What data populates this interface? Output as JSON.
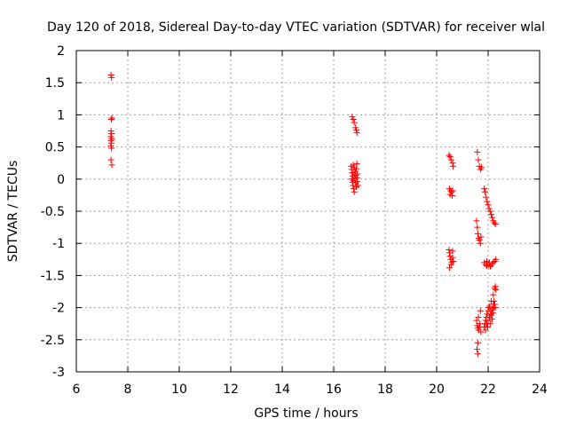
{
  "chart_data": {
    "type": "scatter",
    "title": "Day 120 of 2018, Sidereal Day-to-day VTEC variation (SDTVAR) for receiver wlal",
    "xlabel": "GPS time / hours",
    "ylabel": "SDTVAR / TECUs",
    "xlim": [
      6,
      24
    ],
    "ylim": [
      -3,
      2
    ],
    "xticks": [
      6,
      8,
      10,
      12,
      14,
      16,
      18,
      20,
      22,
      24
    ],
    "xtick_labels": [
      "6",
      "8",
      "10",
      "12",
      "14",
      "16",
      "18",
      "20",
      "22",
      "24"
    ],
    "yticks": [
      -3,
      -2.5,
      -2,
      -1.5,
      -1,
      -0.5,
      0,
      0.5,
      1,
      1.5,
      2
    ],
    "ytick_labels": [
      "-3",
      "-2.5",
      "-2",
      "-1.5",
      "-1",
      "-0.5",
      "0",
      "0.5",
      "1",
      "1.5",
      "2"
    ],
    "grid": true,
    "marker": "+",
    "color": "#ff0000",
    "series": [
      {
        "name": "SDTVAR",
        "points": [
          [
            7.35,
            1.62
          ],
          [
            7.37,
            1.58
          ],
          [
            7.38,
            0.95
          ],
          [
            7.36,
            0.93
          ],
          [
            7.35,
            0.75
          ],
          [
            7.37,
            0.71
          ],
          [
            7.34,
            0.66
          ],
          [
            7.38,
            0.63
          ],
          [
            7.35,
            0.6
          ],
          [
            7.36,
            0.56
          ],
          [
            7.34,
            0.52
          ],
          [
            7.37,
            0.48
          ],
          [
            7.35,
            0.3
          ],
          [
            7.38,
            0.22
          ],
          [
            16.72,
            0.97
          ],
          [
            16.76,
            0.93
          ],
          [
            16.8,
            0.88
          ],
          [
            16.85,
            0.8
          ],
          [
            16.88,
            0.76
          ],
          [
            16.9,
            0.72
          ],
          [
            16.68,
            0.2
          ],
          [
            16.7,
            0.15
          ],
          [
            16.72,
            0.1
          ],
          [
            16.74,
            0.05
          ],
          [
            16.7,
            0.0
          ],
          [
            16.73,
            -0.05
          ],
          [
            16.75,
            -0.1
          ],
          [
            16.78,
            -0.15
          ],
          [
            16.8,
            -0.2
          ],
          [
            16.76,
            0.22
          ],
          [
            16.8,
            0.18
          ],
          [
            16.84,
            0.12
          ],
          [
            16.86,
            0.06
          ],
          [
            16.82,
            0.0
          ],
          [
            16.85,
            -0.06
          ],
          [
            16.88,
            -0.12
          ],
          [
            16.9,
            0.24
          ],
          [
            16.88,
            0.16
          ],
          [
            16.92,
            0.08
          ],
          [
            16.9,
            0.02
          ],
          [
            16.92,
            -0.04
          ],
          [
            16.94,
            -0.1
          ],
          [
            16.8,
            0.08
          ],
          [
            16.76,
            -0.02
          ],
          [
            20.48,
            0.37
          ],
          [
            20.52,
            0.35
          ],
          [
            20.56,
            0.3
          ],
          [
            20.62,
            0.25
          ],
          [
            20.64,
            0.2
          ],
          [
            20.5,
            -0.15
          ],
          [
            20.54,
            -0.18
          ],
          [
            20.58,
            -0.2
          ],
          [
            20.62,
            -0.18
          ],
          [
            20.52,
            -0.24
          ],
          [
            20.6,
            -0.26
          ],
          [
            20.48,
            -1.1
          ],
          [
            20.5,
            -1.15
          ],
          [
            20.52,
            -1.2
          ],
          [
            20.55,
            -1.25
          ],
          [
            20.58,
            -1.3
          ],
          [
            20.62,
            -1.12
          ],
          [
            20.64,
            -1.28
          ],
          [
            20.5,
            -1.38
          ],
          [
            20.56,
            -1.33
          ],
          [
            20.62,
            -1.22
          ],
          [
            21.58,
            0.42
          ],
          [
            21.62,
            0.3
          ],
          [
            21.66,
            0.2
          ],
          [
            21.7,
            0.15
          ],
          [
            21.74,
            0.18
          ],
          [
            21.55,
            -0.65
          ],
          [
            21.58,
            -0.75
          ],
          [
            21.6,
            -0.85
          ],
          [
            21.63,
            -0.92
          ],
          [
            21.66,
            -0.95
          ],
          [
            21.7,
            -1.0
          ],
          [
            21.72,
            -0.9
          ],
          [
            21.55,
            -2.2
          ],
          [
            21.58,
            -2.28
          ],
          [
            21.6,
            -2.32
          ],
          [
            21.63,
            -2.35
          ],
          [
            21.66,
            -2.3
          ],
          [
            21.68,
            -2.25
          ],
          [
            21.7,
            -2.05
          ],
          [
            21.62,
            -2.15
          ],
          [
            21.72,
            -2.38
          ],
          [
            21.6,
            -2.55
          ],
          [
            21.57,
            -2.65
          ],
          [
            21.6,
            -2.72
          ],
          [
            21.85,
            -0.15
          ],
          [
            21.88,
            -0.2
          ],
          [
            21.92,
            -0.28
          ],
          [
            21.96,
            -0.35
          ],
          [
            22.0,
            -0.4
          ],
          [
            22.04,
            -0.46
          ],
          [
            22.08,
            -0.5
          ],
          [
            22.12,
            -0.55
          ],
          [
            22.16,
            -0.6
          ],
          [
            22.2,
            -0.65
          ],
          [
            22.24,
            -0.68
          ],
          [
            22.28,
            -0.7
          ],
          [
            21.85,
            -1.3
          ],
          [
            21.9,
            -1.33
          ],
          [
            21.95,
            -1.35
          ],
          [
            22.0,
            -1.33
          ],
          [
            22.05,
            -1.3
          ],
          [
            22.1,
            -1.35
          ],
          [
            22.15,
            -1.32
          ],
          [
            22.2,
            -1.3
          ],
          [
            22.25,
            -1.28
          ],
          [
            22.3,
            -1.25
          ],
          [
            21.95,
            -1.28
          ],
          [
            22.08,
            -1.36
          ],
          [
            21.85,
            -2.3
          ],
          [
            21.88,
            -2.25
          ],
          [
            21.9,
            -2.2
          ],
          [
            21.93,
            -2.15
          ],
          [
            21.96,
            -2.1
          ],
          [
            22.0,
            -2.05
          ],
          [
            22.03,
            -2.0
          ],
          [
            22.06,
            -1.98
          ],
          [
            22.1,
            -2.05
          ],
          [
            22.13,
            -2.1
          ],
          [
            22.16,
            -2.02
          ],
          [
            22.2,
            -1.95
          ],
          [
            22.23,
            -1.9
          ],
          [
            22.26,
            -1.95
          ],
          [
            22.28,
            -2.0
          ],
          [
            21.9,
            -2.35
          ],
          [
            21.95,
            -2.25
          ],
          [
            22.0,
            -2.2
          ],
          [
            22.05,
            -2.15
          ],
          [
            22.1,
            -2.12
          ],
          [
            22.15,
            -2.18
          ],
          [
            22.18,
            -2.08
          ],
          [
            22.22,
            -2.0
          ],
          [
            22.25,
            -1.7
          ],
          [
            22.28,
            -1.67
          ],
          [
            22.3,
            -1.72
          ],
          [
            22.2,
            -1.8
          ],
          [
            22.12,
            -1.9
          ],
          [
            22.08,
            -2.25
          ],
          [
            21.98,
            -2.3
          ]
        ]
      }
    ]
  }
}
